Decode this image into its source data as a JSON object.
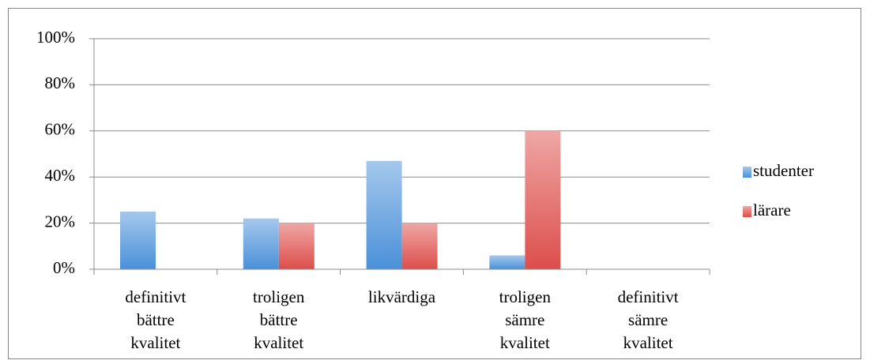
{
  "chart_data": {
    "type": "bar",
    "categories": [
      "definitivt bättre kvalitet",
      "troligen bättre kvalitet",
      "likvärdiga",
      "troligen sämre kvalitet",
      "definitivt sämre kvalitet"
    ],
    "series": [
      {
        "name": "studenter",
        "color": "#4a90d9",
        "values": [
          25,
          22,
          47,
          6,
          0
        ]
      },
      {
        "name": "lärare",
        "color": "#dc4e4b",
        "values": [
          0,
          20,
          20,
          60,
          0
        ]
      }
    ],
    "ylim": [
      0,
      100
    ],
    "yticks": [
      {
        "value": 0,
        "label": "0%"
      },
      {
        "value": 20,
        "label": "20%"
      },
      {
        "value": 40,
        "label": "40%"
      },
      {
        "value": 60,
        "label": "60%"
      },
      {
        "value": 80,
        "label": "80%"
      },
      {
        "value": 100,
        "label": "100%"
      }
    ],
    "grid": true,
    "legend": "right"
  }
}
